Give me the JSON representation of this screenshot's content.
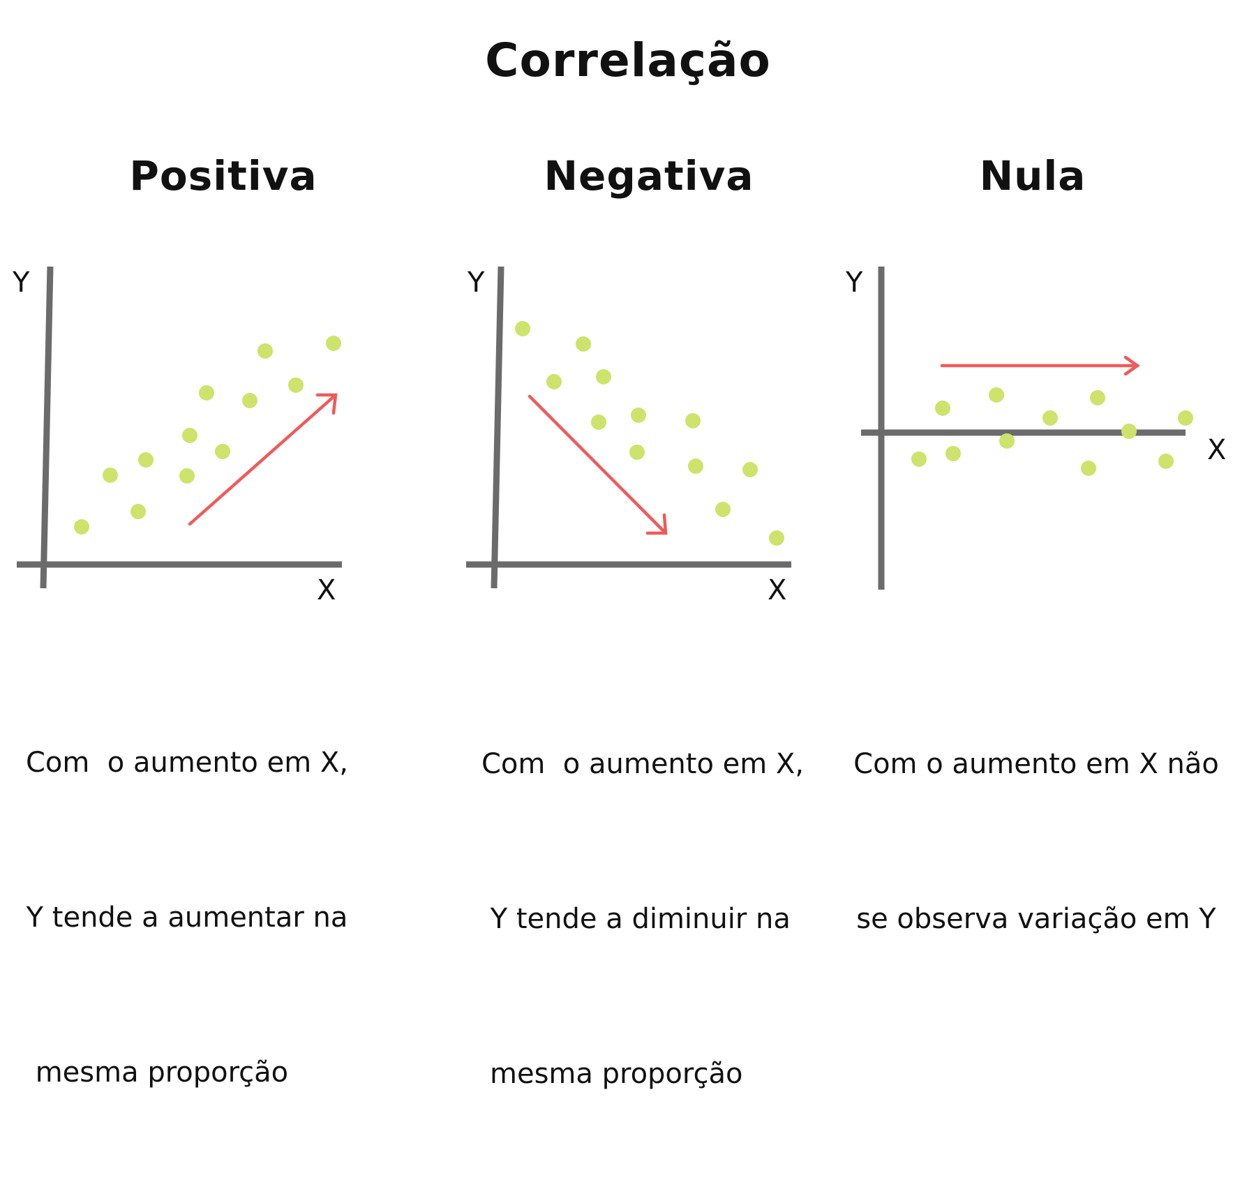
{
  "title": "Correlação",
  "colors": {
    "axis": "#6b6b6b",
    "point": "#cde36b",
    "arrow": "#f05a5a",
    "text": "#111111"
  },
  "panels": [
    {
      "title": "Positiva",
      "axis_x_label": "X",
      "axis_y_label": "Y",
      "trend": "increasing",
      "description_lines": [
        "Com  o aumento em X,",
        "Y tende a aumentar na",
        " mesma proporção"
      ]
    },
    {
      "title": "Negativa",
      "axis_x_label": "X",
      "axis_y_label": "Y",
      "trend": "decreasing",
      "description_lines": [
        "Com  o aumento em X,",
        " Y tende a diminuir na",
        "mesma proporção"
      ]
    },
    {
      "title": "Nula",
      "axis_x_label": "X",
      "axis_y_label": "Y",
      "trend": "none",
      "description_lines": [
        "Com o aumento em X não",
        "se observa variação em Y"
      ]
    }
  ]
}
